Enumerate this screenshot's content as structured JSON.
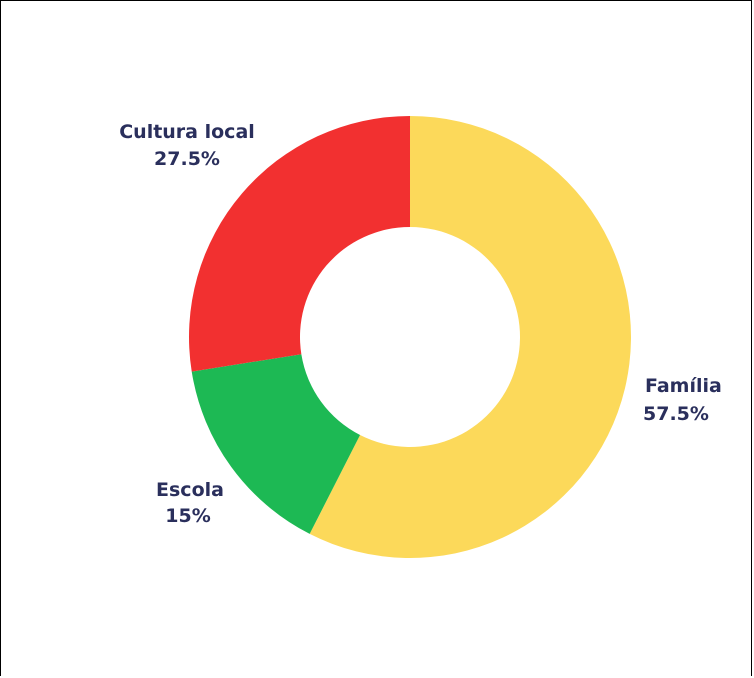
{
  "chart_data": {
    "type": "pie",
    "subtype": "donut",
    "slices": [
      {
        "name": "Família",
        "value": 57.5,
        "label": "57.5%",
        "color": "#fcd95a"
      },
      {
        "name": "Escola",
        "value": 15,
        "label": "15%",
        "color": "#1db954"
      },
      {
        "name": "Cultura local",
        "value": 27.5,
        "label": "27.5%",
        "color": "#f23030"
      }
    ]
  }
}
